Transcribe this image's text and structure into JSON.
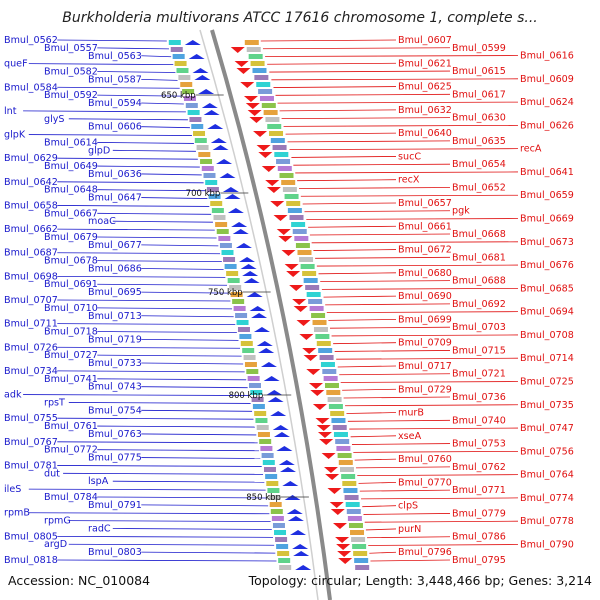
{
  "title": "Burkholderia multivorans ATCC 17616 chromosome 1, complete s...",
  "footer": {
    "accession": "Accession: NC_010084",
    "summary": "Topology: circular; Length: 3,448,466 bp; Genes: 3,214"
  },
  "colors": {
    "left": "#1a1acc",
    "right": "#e01010",
    "backbone": "#8a8a8a",
    "tick": "#1a7a1a"
  },
  "scale_marks": [
    "650 kbp",
    "700 kbp",
    "750 kbp",
    "800 kbp",
    "850 kbp"
  ],
  "left_labels": [
    "Bmul_0562",
    "Bmul_0557",
    "Bmul_0563",
    "queF",
    "Bmul_0582",
    "Bmul_0587",
    "Bmul_0584",
    "Bmul_0592",
    "Bmul_0594",
    "lnt",
    "glyS",
    "Bmul_0606",
    "glpK",
    "Bmul_0614",
    "glpD",
    "Bmul_0629",
    "Bmul_0649",
    "Bmul_0636",
    "Bmul_0642",
    "Bmul_0648",
    "Bmul_0647",
    "Bmul_0658",
    "Bmul_0667",
    "moaC",
    "Bmul_0662",
    "Bmul_0679",
    "Bmul_0677",
    "Bmul_0687",
    "Bmul_0678",
    "Bmul_0686",
    "Bmul_0698",
    "Bmul_0691",
    "Bmul_0695",
    "Bmul_0707",
    "Bmul_0710",
    "Bmul_0713",
    "Bmul_0711",
    "Bmul_0718",
    "Bmul_0719",
    "Bmul_0726",
    "Bmul_0727",
    "Bmul_0733",
    "Bmul_0734",
    "Bmul_0741",
    "Bmul_0743",
    "adk",
    "rpsT",
    "Bmul_0754",
    "Bmul_0755",
    "Bmul_0761",
    "Bmul_0763",
    "Bmul_0767",
    "Bmul_0772",
    "Bmul_0775",
    "Bmul_0781",
    "dut",
    "lspA",
    "ileS",
    "Bmul_0784",
    "Bmul_0791",
    "rpmB",
    "rpmG",
    "radC",
    "Bmul_0805",
    "argD",
    "Bmul_0803",
    "Bmul_0818"
  ],
  "right_labels": [
    "Bmul_0607",
    "Bmul_0599",
    "Bmul_0616",
    "Bmul_0621",
    "Bmul_0615",
    "Bmul_0609",
    "Bmul_0625",
    "Bmul_0617",
    "Bmul_0624",
    "Bmul_0632",
    "Bmul_0630",
    "Bmul_0626",
    "Bmul_0640",
    "Bmul_0635",
    "recA",
    "sucC",
    "Bmul_0654",
    "Bmul_0641",
    "recX",
    "Bmul_0652",
    "Bmul_0659",
    "Bmul_0657",
    "pgk",
    "Bmul_0669",
    "Bmul_0661",
    "Bmul_0668",
    "Bmul_0673",
    "Bmul_0672",
    "Bmul_0681",
    "Bmul_0676",
    "Bmul_0680",
    "Bmul_0688",
    "Bmul_0685",
    "Bmul_0690",
    "Bmul_0692",
    "Bmul_0694",
    "Bmul_0699",
    "Bmul_0703",
    "Bmul_0708",
    "Bmul_0709",
    "Bmul_0715",
    "Bmul_0714",
    "Bmul_0717",
    "Bmul_0721",
    "Bmul_0725",
    "Bmul_0729",
    "Bmul_0736",
    "Bmul_0735",
    "murB",
    "Bmul_0740",
    "Bmul_0747",
    "xseA",
    "Bmul_0753",
    "Bmul_0756",
    "Bmul_0760",
    "Bmul_0762",
    "Bmul_0764",
    "Bmul_0770",
    "Bmul_0771",
    "Bmul_0774",
    "clpS",
    "Bmul_0779",
    "Bmul_0778",
    "purN",
    "Bmul_0786",
    "Bmul_0790",
    "Bmul_0796",
    "Bmul_0795"
  ]
}
